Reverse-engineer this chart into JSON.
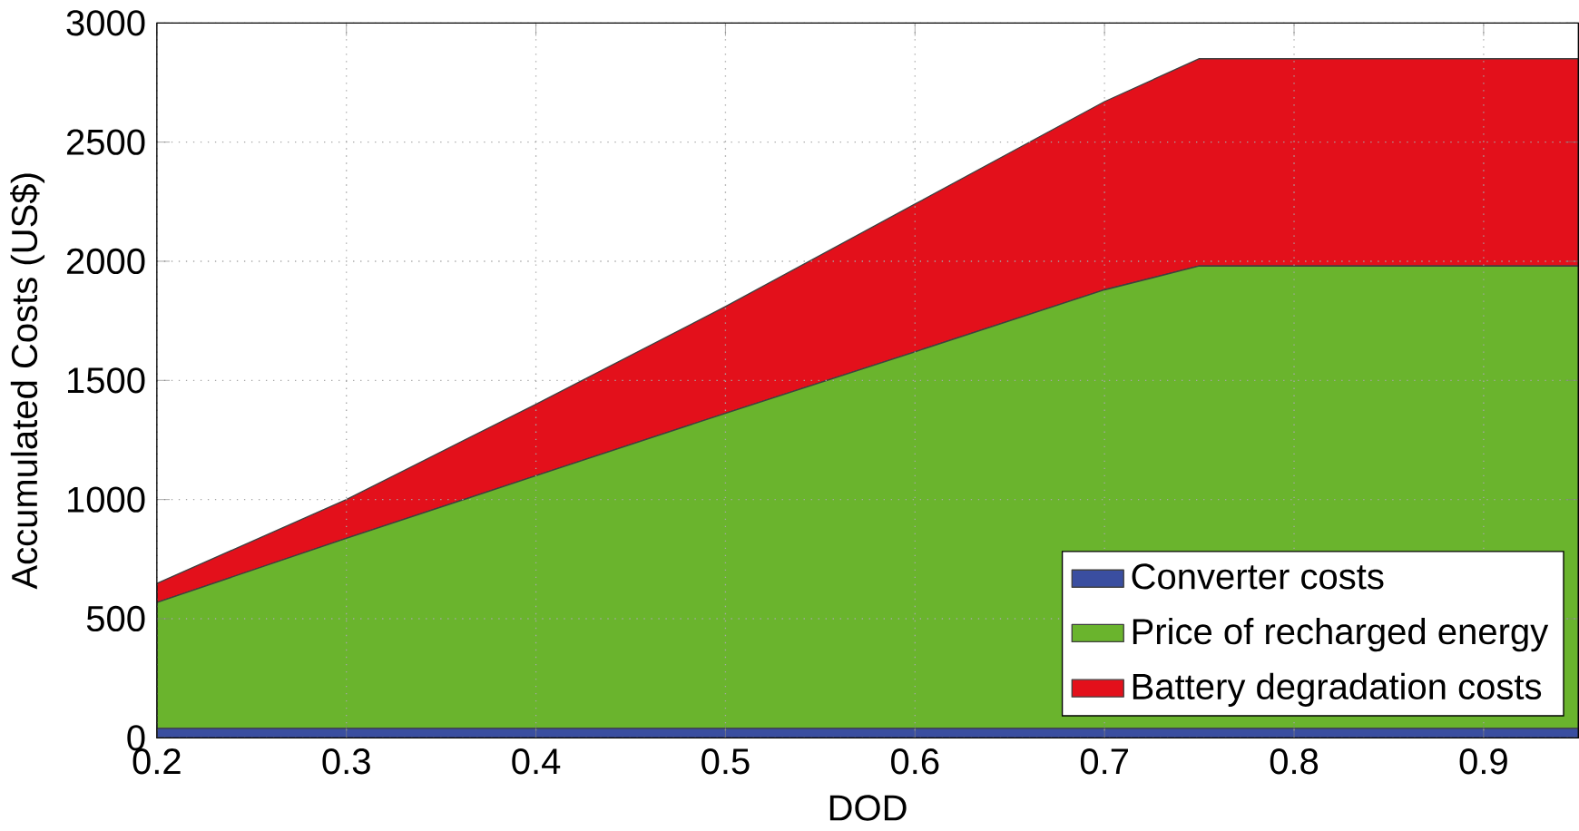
{
  "chart_data": {
    "type": "area",
    "stacked": true,
    "xlabel": "DOD",
    "ylabel": "Accumulated Costs (US$)",
    "x": [
      0.2,
      0.3,
      0.4,
      0.5,
      0.6,
      0.7,
      0.75,
      0.95
    ],
    "series": [
      {
        "name": "Converter costs",
        "color": "#3a4ea0",
        "values": [
          40,
          40,
          40,
          40,
          40,
          40,
          40,
          40
        ]
      },
      {
        "name": "Price of recharged energy",
        "color": "#6ab42d",
        "values": [
          528,
          797,
          1060,
          1322,
          1580,
          1840,
          1940,
          1940
        ]
      },
      {
        "name": "Battery degradation costs",
        "color": "#e3101b",
        "values": [
          80,
          163,
          300,
          448,
          620,
          790,
          870,
          870
        ]
      }
    ],
    "xlim": [
      0.2,
      0.95
    ],
    "ylim": [
      0,
      3000
    ],
    "xticks": [
      0.2,
      0.3,
      0.4,
      0.5,
      0.6,
      0.7,
      0.8,
      0.9
    ],
    "yticks": [
      0,
      500,
      1000,
      1500,
      2000,
      2500,
      3000
    ],
    "grid": true,
    "legend": "bottom right"
  }
}
